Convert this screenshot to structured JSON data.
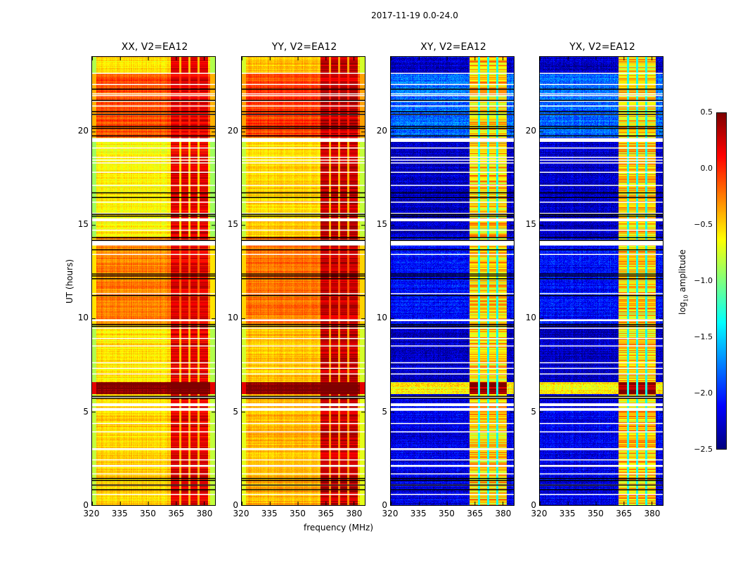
{
  "chart_data": {
    "type": "heatmap",
    "title": "2017-11-19 0.0-24.0",
    "xlabel": "frequency (MHz)",
    "ylabel": "UT (hours)",
    "xlim": [
      320,
      386
    ],
    "ylim": [
      0,
      24
    ],
    "xticks": [
      320,
      335,
      350,
      365,
      380
    ],
    "xtick_labels": [
      "320",
      "335",
      "350",
      "365",
      "380"
    ],
    "yticks": [
      0,
      5,
      10,
      15,
      20
    ],
    "ytick_labels": [
      "0",
      "5",
      "10",
      "15",
      "20"
    ],
    "colormap": "jet",
    "colorbar": {
      "label_prefix": "log",
      "label_sub": "10",
      "label_suffix": " amplitude",
      "range": [
        -2.5,
        0.5
      ],
      "ticks": [
        0.5,
        0.0,
        -0.5,
        -1.0,
        -1.5,
        -2.0,
        -2.5
      ],
      "tick_labels": [
        "0.5",
        "0.0",
        "−0.5",
        "−1.0",
        "−1.5",
        "−2.0",
        "−2.5"
      ]
    },
    "rfi_band_mhz": [
      362,
      382
    ],
    "rfi_subband_gaps_mhz": [
      367,
      372,
      377
    ],
    "flagged_white_hours": [
      [
        23.1,
        23.15
      ],
      [
        22.5,
        22.55
      ],
      [
        22.0,
        22.05
      ],
      [
        21.9,
        21.95
      ],
      [
        21.6,
        21.65
      ],
      [
        21.35,
        21.4
      ],
      [
        20.9,
        20.95
      ],
      [
        19.45,
        19.65
      ],
      [
        19.1,
        19.15
      ],
      [
        18.6,
        18.65
      ],
      [
        18.45,
        18.5
      ],
      [
        18.3,
        18.35
      ],
      [
        17.8,
        17.85
      ],
      [
        17.1,
        17.15
      ],
      [
        16.2,
        16.25
      ],
      [
        15.6,
        15.65
      ],
      [
        15.2,
        15.35
      ],
      [
        14.7,
        14.75
      ],
      [
        13.9,
        14.2
      ],
      [
        13.4,
        13.45
      ],
      [
        11.3,
        11.35
      ],
      [
        9.85,
        9.95
      ],
      [
        9.45,
        9.5
      ],
      [
        8.9,
        8.95
      ],
      [
        8.5,
        8.55
      ],
      [
        7.6,
        7.65
      ],
      [
        7.3,
        7.35
      ],
      [
        7.0,
        7.05
      ],
      [
        5.75,
        5.8
      ],
      [
        5.3,
        5.45
      ],
      [
        5.05,
        5.2
      ],
      [
        4.35,
        4.4
      ],
      [
        3.9,
        3.95
      ],
      [
        3.0,
        3.05
      ],
      [
        2.95,
        3.0
      ],
      [
        2.4,
        2.45
      ],
      [
        2.05,
        2.15
      ],
      [
        1.65,
        1.7
      ],
      [
        1.05,
        1.1
      ],
      [
        0.55,
        0.6
      ]
    ],
    "flag_lines_black_hours": [
      22.3,
      21.7,
      21.1,
      20.95,
      20.3,
      20.2,
      19.8,
      16.75,
      16.5,
      15.6,
      15.5,
      14.35,
      14.2,
      13.7,
      12.4,
      12.3,
      12.15,
      11.25,
      9.7,
      9.6,
      5.85,
      5.75,
      1.45,
      1.35,
      1.1,
      0.85
    ],
    "panels": [
      {
        "name": "XX",
        "title": "XX, V2=EA12",
        "background_level": -0.45,
        "rfi_level": 0.1,
        "segments_hours": [
          [
            23.1,
            24.0,
            -0.55
          ],
          [
            19.7,
            23.1,
            -0.1
          ],
          [
            14.4,
            19.7,
            -0.6
          ],
          [
            9.65,
            14.4,
            -0.25
          ],
          [
            6.6,
            9.65,
            -0.55
          ],
          [
            5.95,
            6.6,
            0.5
          ],
          [
            0,
            5.95,
            -0.5
          ]
        ]
      },
      {
        "name": "YY",
        "title": "YY, V2=EA12",
        "background_level": -0.4,
        "rfi_level": 0.2,
        "segments_hours": [
          [
            23.1,
            24.0,
            -0.45
          ],
          [
            19.7,
            23.1,
            -0.05
          ],
          [
            14.4,
            19.7,
            -0.5
          ],
          [
            9.65,
            14.4,
            -0.2
          ],
          [
            6.6,
            9.65,
            -0.45
          ],
          [
            5.95,
            6.6,
            0.5
          ],
          [
            0,
            5.95,
            -0.4
          ]
        ]
      },
      {
        "name": "XY",
        "title": "XY, V2=EA12",
        "background_level": -2.2,
        "rfi_level": -0.5,
        "segments_hours": [
          [
            23.1,
            24.0,
            -2.3
          ],
          [
            19.7,
            23.1,
            -1.8
          ],
          [
            14.4,
            19.7,
            -2.3
          ],
          [
            9.65,
            14.4,
            -2.1
          ],
          [
            6.6,
            9.65,
            -2.3
          ],
          [
            5.95,
            6.6,
            -0.6
          ],
          [
            0,
            5.95,
            -2.2
          ]
        ]
      },
      {
        "name": "YX",
        "title": "YX, V2=EA12",
        "background_level": -2.2,
        "rfi_level": -0.5,
        "segments_hours": [
          [
            23.1,
            24.0,
            -2.3
          ],
          [
            19.7,
            23.1,
            -1.8
          ],
          [
            14.4,
            19.7,
            -2.3
          ],
          [
            9.65,
            14.4,
            -2.1
          ],
          [
            6.6,
            9.65,
            -2.3
          ],
          [
            5.95,
            6.6,
            -0.6
          ],
          [
            0,
            5.95,
            -2.2
          ]
        ]
      }
    ]
  }
}
